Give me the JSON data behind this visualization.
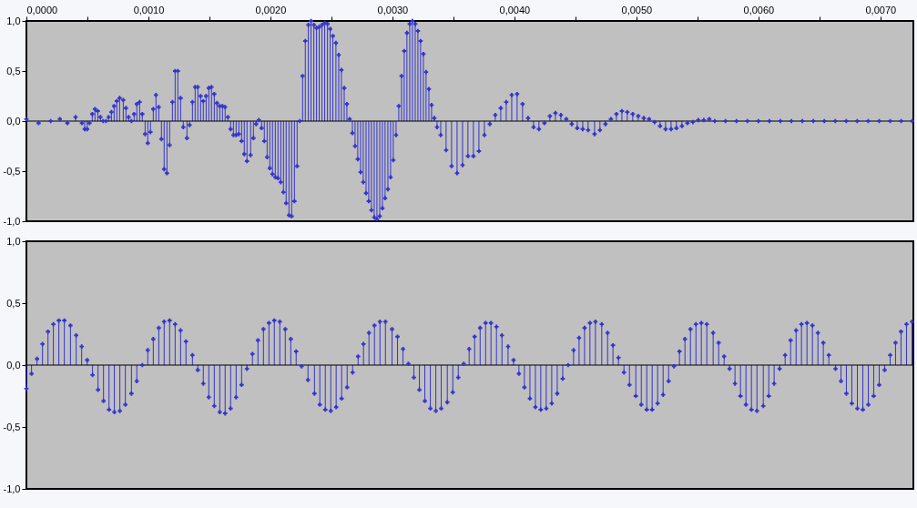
{
  "chart_data": [
    {
      "type": "lollipop",
      "color": "#3333cc",
      "marker": "cross",
      "ref_lines": [
        {
          "axis": "y",
          "value": 0,
          "color": "#000000"
        }
      ],
      "xlim": [
        0,
        0.00727
      ],
      "ylim": [
        -1,
        1
      ],
      "xticks": [
        {
          "value": 0,
          "label": "0,0000"
        },
        {
          "value": 0.0005,
          "label": null
        },
        {
          "value": 0.001,
          "label": "0,0010"
        },
        {
          "value": 0.0015,
          "label": null
        },
        {
          "value": 0.002,
          "label": "0,0020"
        },
        {
          "value": 0.0025,
          "label": null
        },
        {
          "value": 0.003,
          "label": "0,0030"
        },
        {
          "value": 0.0035,
          "label": null
        },
        {
          "value": 0.004,
          "label": "0,0040"
        },
        {
          "value": 0.0045,
          "label": null
        },
        {
          "value": 0.005,
          "label": "0,0050"
        },
        {
          "value": 0.0055,
          "label": null
        },
        {
          "value": 0.006,
          "label": "0,0060"
        },
        {
          "value": 0.0065,
          "label": null
        },
        {
          "value": 0.007,
          "label": "0,0070"
        }
      ],
      "yticks": [
        {
          "value": -1,
          "label": "-1,0"
        },
        {
          "value": -0.5,
          "label": "-0,5"
        },
        {
          "value": 0,
          "label": "0,0"
        },
        {
          "value": 0.5,
          "label": "0,5"
        },
        {
          "value": 1,
          "label": "1,0"
        }
      ],
      "x": [
        0,
        0.0001,
        0.000199,
        0.000274,
        0.000336,
        0.000403,
        0.000455,
        0.000478,
        0.000498,
        0.000517,
        0.00054,
        0.000562,
        0.000585,
        0.000607,
        0.000629,
        0.000652,
        0.000674,
        0.000697,
        0.000719,
        0.000741,
        0.000764,
        0.000794,
        0.000816,
        0.000838,
        0.000861,
        0.000883,
        0.000905,
        0.000928,
        0.00095,
        0.000973,
        0.000995,
        0.001017,
        0.00104,
        0.001062,
        0.001085,
        0.001107,
        0.001129,
        0.001152,
        0.001174,
        0.001197,
        0.001219,
        0.001241,
        0.001264,
        0.001286,
        0.001316,
        0.001338,
        0.001361,
        0.001383,
        0.001405,
        0.001428,
        0.00145,
        0.001473,
        0.001495,
        0.001517,
        0.00154,
        0.001562,
        0.001585,
        0.001607,
        0.001629,
        0.001652,
        0.001674,
        0.001697,
        0.001719,
        0.001741,
        0.001764,
        0.001786,
        0.001808,
        0.001838,
        0.001861,
        0.001883,
        0.001905,
        0.001928,
        0.00195,
        0.001973,
        0.001995,
        0.002017,
        0.00204,
        0.002062,
        0.002085,
        0.002107,
        0.002129,
        0.002152,
        0.002174,
        0.002197,
        0.002219,
        0.002241,
        0.002264,
        0.002286,
        0.002311,
        0.002333,
        0.002356,
        0.002378,
        0.0024,
        0.002423,
        0.002445,
        0.002468,
        0.00249,
        0.002512,
        0.002537,
        0.00256,
        0.002582,
        0.002605,
        0.002627,
        0.002649,
        0.002672,
        0.002694,
        0.002716,
        0.002739,
        0.002761,
        0.002784,
        0.002806,
        0.002828,
        0.002851,
        0.002873,
        0.002896,
        0.002918,
        0.00294,
        0.002963,
        0.002985,
        0.003007,
        0.00303,
        0.003052,
        0.003075,
        0.003097,
        0.003119,
        0.003142,
        0.003164,
        0.003187,
        0.003209,
        0.003231,
        0.003254,
        0.003276,
        0.003299,
        0.003321,
        0.003343,
        0.003366,
        0.003396,
        0.00344,
        0.003485,
        0.00353,
        0.003575,
        0.003619,
        0.003664,
        0.003709,
        0.003754,
        0.003798,
        0.003843,
        0.003888,
        0.003933,
        0.003978,
        0.004022,
        0.004067,
        0.004112,
        0.004157,
        0.004201,
        0.004246,
        0.004291,
        0.004336,
        0.004381,
        0.004425,
        0.00447,
        0.004515,
        0.00456,
        0.004604,
        0.004657,
        0.004701,
        0.004746,
        0.004791,
        0.004836,
        0.004881,
        0.004925,
        0.00497,
        0.005015,
        0.00506,
        0.005104,
        0.005149,
        0.005194,
        0.005239,
        0.005284,
        0.005328,
        0.005373,
        0.005418,
        0.005463,
        0.005507,
        0.005552,
        0.005597,
        0.005642,
        0.00573,
        0.00582,
        0.00591,
        0.006,
        0.00609,
        0.00618,
        0.00627,
        0.00636,
        0.00645,
        0.00654,
        0.00663,
        0.00672,
        0.00681,
        0.0069,
        0.00699,
        0.00708,
        0.00717,
        0.00726
      ],
      "values": [
        0.02,
        -0.02,
        0,
        0.02,
        -0.02,
        0.04,
        -0.02,
        -0.08,
        -0.08,
        -0.02,
        0.07,
        0.12,
        0.1,
        0.04,
        0,
        0,
        0.04,
        0.09,
        0.15,
        0.2,
        0.23,
        0.21,
        0.13,
        0.04,
        0,
        0.07,
        0.17,
        0.19,
        0.07,
        -0.13,
        -0.22,
        -0.11,
        0.12,
        0.26,
        0.14,
        -0.18,
        -0.48,
        -0.52,
        -0.24,
        0.19,
        0.5,
        0.5,
        0.23,
        -0.06,
        -0.17,
        -0.04,
        0.19,
        0.34,
        0.34,
        0.25,
        0.2,
        0.25,
        0.33,
        0.34,
        0.27,
        0.18,
        0.15,
        0.15,
        0.14,
        0.04,
        -0.08,
        -0.14,
        -0.14,
        -0.13,
        -0.2,
        -0.33,
        -0.4,
        -0.34,
        -0.17,
        -0.03,
        0.01,
        -0.07,
        -0.2,
        -0.36,
        -0.47,
        -0.53,
        -0.56,
        -0.57,
        -0.61,
        -0.71,
        -0.82,
        -0.94,
        -0.95,
        -0.8,
        -0.45,
        0,
        0.45,
        0.8,
        0.96,
        1.0,
        0.96,
        0.93,
        0.94,
        0.96,
        0.98,
        0.97,
        0.92,
        0.85,
        0.78,
        0.66,
        0.51,
        0.33,
        0.17,
        0.02,
        -0.12,
        -0.25,
        -0.38,
        -0.51,
        -0.61,
        -0.72,
        -0.8,
        -0.89,
        -0.96,
        -0.98,
        -0.95,
        -0.87,
        -0.77,
        -0.68,
        -0.56,
        -0.39,
        -0.14,
        0.15,
        0.45,
        0.7,
        0.88,
        0.97,
        1.0,
        0.97,
        0.9,
        0.8,
        0.67,
        0.49,
        0.32,
        0.16,
        0.03,
        -0.06,
        -0.14,
        -0.29,
        -0.45,
        -0.52,
        -0.44,
        -0.35,
        -0.35,
        -0.3,
        -0.14,
        -0.03,
        0.06,
        0.13,
        0.19,
        0.26,
        0.27,
        0.17,
        0.03,
        -0.06,
        -0.08,
        -0.02,
        0.05,
        0.08,
        0.06,
        0.02,
        -0.03,
        -0.07,
        -0.08,
        -0.09,
        -0.13,
        -0.09,
        -0.03,
        0.02,
        0.07,
        0.1,
        0.09,
        0.07,
        0.05,
        0.03,
        0.02,
        -0.01,
        -0.05,
        -0.08,
        -0.08,
        -0.07,
        -0.05,
        -0.02,
        -0.01,
        0.01,
        0.01,
        0.02,
        0,
        0,
        0,
        0,
        0,
        0,
        0,
        0,
        0,
        0,
        0,
        0,
        0,
        0,
        0,
        0,
        0,
        0,
        0
      ]
    },
    {
      "type": "lollipop",
      "color": "#3333cc",
      "marker": "cross",
      "tick_labels": "y",
      "ref_lines": [
        {
          "axis": "y",
          "value": 0,
          "color": "#000000"
        }
      ],
      "xlim": [
        0,
        0.00727
      ],
      "ylim": [
        -1,
        1
      ],
      "yticks": [
        {
          "value": -1,
          "label": "-1,0"
        },
        {
          "value": -0.5,
          "label": "-0,5"
        },
        {
          "value": 0,
          "label": "0,0"
        },
        {
          "value": 0.5,
          "label": "0,5"
        },
        {
          "value": 1,
          "label": "1,0"
        }
      ],
      "x": [
        0,
        4.2e-05,
        8.7e-05,
        0.000132,
        0.000177,
        0.000221,
        0.000266,
        0.000311,
        0.000361,
        0.000408,
        0.000453,
        0.000498,
        0.000542,
        0.000587,
        0.000632,
        0.000677,
        0.000721,
        0.000766,
        0.000811,
        0.000861,
        0.000905,
        0.00095,
        0.000995,
        0.00104,
        0.001085,
        0.001129,
        0.001174,
        0.001219,
        0.001264,
        0.001308,
        0.001361,
        0.001405,
        0.00145,
        0.001495,
        0.00154,
        0.001585,
        0.001629,
        0.001674,
        0.001719,
        0.001764,
        0.001808,
        0.001853,
        0.001898,
        0.001943,
        0.001988,
        0.002032,
        0.002077,
        0.002122,
        0.002167,
        0.002211,
        0.002256,
        0.002308,
        0.002361,
        0.002405,
        0.00245,
        0.002495,
        0.002539,
        0.002584,
        0.002629,
        0.002674,
        0.002719,
        0.002763,
        0.002808,
        0.002853,
        0.002898,
        0.002943,
        0.002997,
        0.003042,
        0.003087,
        0.003131,
        0.003176,
        0.003221,
        0.003266,
        0.003311,
        0.003356,
        0.0034,
        0.00345,
        0.003495,
        0.00354,
        0.003585,
        0.003629,
        0.003674,
        0.003719,
        0.003764,
        0.003808,
        0.003853,
        0.003898,
        0.003948,
        0.003993,
        0.004037,
        0.004082,
        0.004127,
        0.004172,
        0.004216,
        0.004261,
        0.004306,
        0.004351,
        0.004396,
        0.00444,
        0.004485,
        0.00453,
        0.004575,
        0.004619,
        0.004664,
        0.004716,
        0.004764,
        0.004808,
        0.004853,
        0.004898,
        0.004943,
        0.004995,
        0.00504,
        0.005085,
        0.005129,
        0.005174,
        0.005219,
        0.005264,
        0.005308,
        0.005353,
        0.005398,
        0.005443,
        0.005488,
        0.005532,
        0.005577,
        0.005629,
        0.005674,
        0.005719,
        0.005764,
        0.005808,
        0.005853,
        0.005898,
        0.005943,
        0.005988,
        0.00604,
        0.006085,
        0.006129,
        0.006174,
        0.006219,
        0.006264,
        0.006309,
        0.006353,
        0.006398,
        0.006443,
        0.006488,
        0.006532,
        0.006577,
        0.006632,
        0.006677,
        0.006721,
        0.006766,
        0.006811,
        0.006856,
        0.006901,
        0.006945,
        0.00699,
        0.007035,
        0.00708,
        0.007124,
        0.007169,
        0.007214,
        0.007259
      ],
      "values": [
        -0.19,
        -0.07,
        0.05,
        0.17,
        0.27,
        0.33,
        0.36,
        0.36,
        0.32,
        0.24,
        0.15,
        0.04,
        -0.08,
        -0.2,
        -0.29,
        -0.36,
        -0.38,
        -0.37,
        -0.32,
        -0.23,
        -0.13,
        0,
        0.12,
        0.21,
        0.3,
        0.35,
        0.36,
        0.33,
        0.28,
        0.19,
        0.08,
        -0.04,
        -0.15,
        -0.26,
        -0.33,
        -0.38,
        -0.39,
        -0.35,
        -0.26,
        -0.16,
        -0.03,
        0.09,
        0.2,
        0.29,
        0.34,
        0.36,
        0.35,
        0.29,
        0.21,
        0.11,
        -0.01,
        -0.12,
        -0.23,
        -0.32,
        -0.36,
        -0.37,
        -0.34,
        -0.27,
        -0.18,
        -0.06,
        0.07,
        0.17,
        0.26,
        0.32,
        0.35,
        0.35,
        0.29,
        0.23,
        0.13,
        0.01,
        -0.1,
        -0.2,
        -0.29,
        -0.35,
        -0.37,
        -0.35,
        -0.3,
        -0.22,
        -0.1,
        0.01,
        0.13,
        0.23,
        0.3,
        0.34,
        0.34,
        0.31,
        0.24,
        0.15,
        0.04,
        -0.07,
        -0.18,
        -0.27,
        -0.34,
        -0.36,
        -0.35,
        -0.31,
        -0.23,
        -0.11,
        0,
        0.12,
        0.22,
        0.3,
        0.34,
        0.35,
        0.33,
        0.26,
        0.16,
        0.06,
        -0.06,
        -0.16,
        -0.25,
        -0.32,
        -0.36,
        -0.36,
        -0.31,
        -0.24,
        -0.13,
        -0.01,
        0.11,
        0.21,
        0.29,
        0.33,
        0.34,
        0.33,
        0.26,
        0.18,
        0.07,
        -0.03,
        -0.15,
        -0.25,
        -0.32,
        -0.36,
        -0.37,
        -0.33,
        -0.25,
        -0.15,
        -0.03,
        0.08,
        0.2,
        0.28,
        0.33,
        0.34,
        0.32,
        0.26,
        0.18,
        0.08,
        -0.03,
        -0.13,
        -0.23,
        -0.31,
        -0.35,
        -0.36,
        -0.32,
        -0.25,
        -0.16,
        -0.04,
        0.08,
        0.18,
        0.27,
        0.33,
        0.35
      ]
    }
  ]
}
